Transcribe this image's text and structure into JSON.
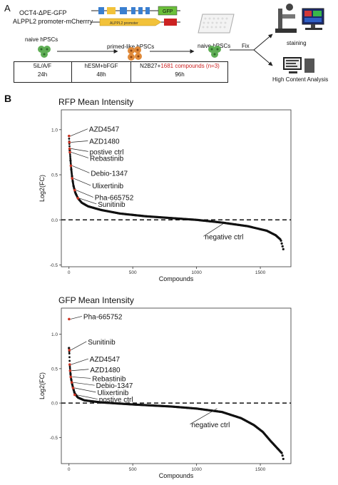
{
  "panel_a": {
    "letter": "A",
    "construct_line1": "OCT4-",
    "construct_delta": "Δ",
    "construct_line1_rest": "PE-GFP",
    "construct_line2": "ALPPL2 promoter-mCherrry",
    "construct_gfp": "GFP",
    "construct_promoter": "ALPPL2 promoter",
    "naive_label_1": "naive hPSCs",
    "primed_label": "primed-like hPSCs",
    "naive_label_2": "naive hPSCs",
    "fix_label": "Fix",
    "staining_label": "staining",
    "hca_label": "High Content Analysis",
    "timeline": [
      {
        "label": "5iL/A/F",
        "duration": "24h"
      },
      {
        "label": "hESM+bFGF",
        "duration": "48h"
      },
      {
        "label_pre": "N2B27+",
        "label_red": "1681 compounds (n=3)",
        "duration": "96h"
      }
    ],
    "colors": {
      "naive_green": "#5fae55",
      "primed_orange": "#e08a3a",
      "red": "#cc2222",
      "gfp_green": "#6bbf3a",
      "promoter_yellow": "#f2c23a",
      "mcherry_blue": "#3a7fd0"
    }
  },
  "panel_b": {
    "letter": "B"
  },
  "chart_data": [
    {
      "type": "scatter",
      "title": "RFP Mean Intensity",
      "xlabel": "Compounds",
      "ylabel": "Log2(FC)",
      "xlim": [
        -60,
        1740
      ],
      "ylim": [
        -0.52,
        1.22
      ],
      "xticks": [
        0,
        500,
        1000,
        1500
      ],
      "yticks": [
        -0.5,
        0.0,
        0.5,
        1.0
      ],
      "ytick_labels": [
        "-0.5",
        "0.0",
        "0.5",
        "1.0"
      ],
      "reference_line": 0.0,
      "grid": false,
      "highlight_color": "#cc3322",
      "highlighted_points": [
        {
          "x": 1,
          "y": 0.93,
          "label": "AZD4547"
        },
        {
          "x": 3,
          "y": 0.86,
          "label": "AZD1480"
        },
        {
          "x": 5,
          "y": 0.79,
          "label": "postive ctrl"
        },
        {
          "x": 7,
          "y": 0.75,
          "label": "Rebastinib"
        },
        {
          "x": 15,
          "y": 0.6,
          "label": "Debio-1347"
        },
        {
          "x": 25,
          "y": 0.46,
          "label": "Ulixertinib"
        },
        {
          "x": 45,
          "y": 0.33,
          "label": "Pha-665752"
        },
        {
          "x": 70,
          "y": 0.24,
          "label": "Sunitinib"
        },
        {
          "x": 1200,
          "y": -0.04,
          "label": "negative ctrl"
        }
      ],
      "curve": [
        [
          0,
          0.93
        ],
        [
          2,
          0.87
        ],
        [
          5,
          0.79
        ],
        [
          8,
          0.74
        ],
        [
          12,
          0.66
        ],
        [
          18,
          0.56
        ],
        [
          25,
          0.47
        ],
        [
          35,
          0.38
        ],
        [
          50,
          0.3
        ],
        [
          70,
          0.24
        ],
        [
          100,
          0.19
        ],
        [
          150,
          0.15
        ],
        [
          250,
          0.11
        ],
        [
          400,
          0.07
        ],
        [
          600,
          0.04
        ],
        [
          800,
          0.02
        ],
        [
          1000,
          0.0
        ],
        [
          1200,
          -0.03
        ],
        [
          1400,
          -0.07
        ],
        [
          1550,
          -0.12
        ],
        [
          1620,
          -0.17
        ],
        [
          1660,
          -0.22
        ],
        [
          1681,
          -0.33
        ]
      ]
    },
    {
      "type": "scatter",
      "title": "GFP Mean Intensity",
      "xlabel": "Compounds",
      "ylabel": "Log2(FC)",
      "xlim": [
        -60,
        1740
      ],
      "ylim": [
        -0.88,
        1.38
      ],
      "xticks": [
        0,
        500,
        1000,
        1500
      ],
      "yticks": [
        -0.5,
        0.0,
        0.5,
        1.0
      ],
      "ytick_labels": [
        "-0.5",
        "0.0",
        "0.5",
        "1.0"
      ],
      "reference_line": 0.0,
      "grid": false,
      "highlight_color": "#cc3322",
      "highlighted_points": [
        {
          "x": 1,
          "y": 1.22,
          "label": "Pha-665752"
        },
        {
          "x": 3,
          "y": 0.77,
          "label": "Sunitinib"
        },
        {
          "x": 6,
          "y": 0.56,
          "label": "AZD4547"
        },
        {
          "x": 9,
          "y": 0.47,
          "label": "AZD1480"
        },
        {
          "x": 14,
          "y": 0.38,
          "label": "Rebastinib"
        },
        {
          "x": 22,
          "y": 0.3,
          "label": "Debio-1347"
        },
        {
          "x": 32,
          "y": 0.22,
          "label": "Ulixertinib"
        },
        {
          "x": 45,
          "y": 0.12,
          "label": "postive ctrl"
        },
        {
          "x": 1150,
          "y": -0.08,
          "label": "negative ctrl"
        }
      ],
      "curve": [
        [
          0,
          0.8
        ],
        [
          3,
          0.72
        ],
        [
          6,
          0.56
        ],
        [
          10,
          0.46
        ],
        [
          15,
          0.37
        ],
        [
          22,
          0.3
        ],
        [
          32,
          0.22
        ],
        [
          45,
          0.14
        ],
        [
          70,
          0.08
        ],
        [
          120,
          0.04
        ],
        [
          250,
          0.01
        ],
        [
          500,
          -0.02
        ],
        [
          800,
          -0.05
        ],
        [
          1000,
          -0.08
        ],
        [
          1200,
          -0.13
        ],
        [
          1350,
          -0.22
        ],
        [
          1450,
          -0.32
        ],
        [
          1520,
          -0.42
        ],
        [
          1580,
          -0.55
        ],
        [
          1630,
          -0.65
        ],
        [
          1670,
          -0.73
        ],
        [
          1681,
          -0.82
        ]
      ]
    }
  ]
}
